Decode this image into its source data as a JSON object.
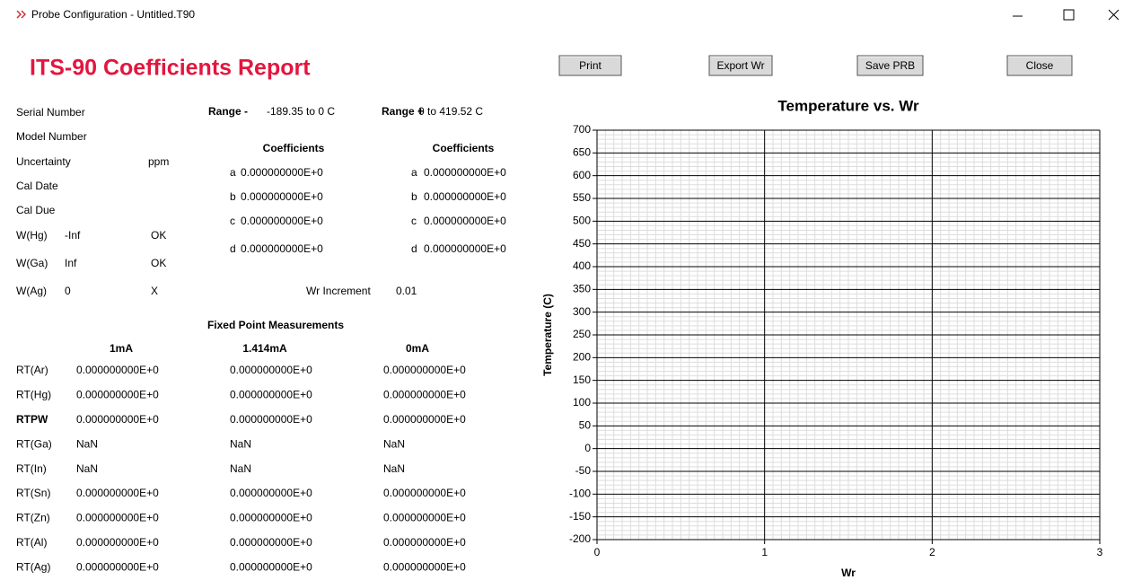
{
  "window": {
    "title": "Probe Configuration - Untitled.T90"
  },
  "report": {
    "title": "ITS-90 Coefficients Report"
  },
  "buttons": [
    "Print",
    "Export Wr",
    "Save PRB",
    "Close"
  ],
  "info": [
    {
      "label": "Serial Number"
    },
    {
      "label": "Model Number"
    },
    {
      "label": "Uncertainty",
      "unit": "ppm"
    },
    {
      "label": "Cal Date"
    },
    {
      "label": "Cal Due"
    },
    {
      "label": "W(Hg)",
      "value": "-Inf",
      "status": "OK"
    },
    {
      "label": "W(Ga)",
      "value": "Inf",
      "status": "OK"
    },
    {
      "label": "W(Ag)",
      "value": 0,
      "status": "X"
    }
  ],
  "ranges": [
    {
      "label": "Range -",
      "value": "-189.35 to 0 C"
    },
    {
      "label": "Range +",
      "value": "0 to 419.52 C"
    }
  ],
  "coefficients": [
    {
      "heading": "Coefficients",
      "rows": [
        [
          "a",
          "0.000000000E+0"
        ],
        [
          "b",
          "0.000000000E+0"
        ],
        [
          "c",
          "0.000000000E+0"
        ],
        [
          "d",
          "0.000000000E+0"
        ]
      ]
    },
    {
      "heading": "Coefficients",
      "rows": [
        [
          "a",
          "0.000000000E+0"
        ],
        [
          "b",
          "0.000000000E+0"
        ],
        [
          "c",
          "0.000000000E+0"
        ],
        [
          "d",
          "0.000000000E+0"
        ]
      ]
    }
  ],
  "wr_increment": {
    "label": "Wr Increment",
    "value": 0.01
  },
  "fixed_points": {
    "title": "Fixed Point Measurements",
    "columns": [
      "1mA",
      "1.414mA",
      "0mA"
    ],
    "rows": [
      {
        "label": "RT(Ar)",
        "values": [
          "0.000000000E+0",
          "0.000000000E+0",
          "0.000000000E+0"
        ]
      },
      {
        "label": "RT(Hg)",
        "values": [
          "0.000000000E+0",
          "0.000000000E+0",
          "0.000000000E+0"
        ]
      },
      {
        "label": "RTPW",
        "values": [
          "0.000000000E+0",
          "0.000000000E+0",
          "0.000000000E+0"
        ]
      },
      {
        "label": "RT(Ga)",
        "values": [
          "NaN",
          "NaN",
          "NaN"
        ]
      },
      {
        "label": "RT(In)",
        "values": [
          "NaN",
          "NaN",
          "NaN"
        ]
      },
      {
        "label": "RT(Sn)",
        "values": [
          "0.000000000E+0",
          "0.000000000E+0",
          "0.000000000E+0"
        ]
      },
      {
        "label": "RT(Zn)",
        "values": [
          "0.000000000E+0",
          "0.000000000E+0",
          "0.000000000E+0"
        ]
      },
      {
        "label": "RT(Al)",
        "values": [
          "0.000000000E+0",
          "0.000000000E+0",
          "0.000000000E+0"
        ]
      },
      {
        "label": "RT(Ag)",
        "values": [
          "0.000000000E+0",
          "0.000000000E+0",
          "0.000000000E+0"
        ]
      }
    ]
  },
  "chart_data": {
    "type": "line",
    "title": "Temperature vs. Wr",
    "x_label": "Wr",
    "y_label": "Temperature (C)",
    "xlim": [
      0,
      3
    ],
    "xticks": [
      0,
      1,
      2,
      3
    ],
    "ylim": [
      -200,
      700
    ],
    "yticks": [
      -200,
      -150,
      -100,
      -50,
      0,
      50,
      100,
      150,
      200,
      250,
      300,
      350,
      400,
      450,
      500,
      550,
      600,
      650,
      700
    ],
    "grid": true,
    "series": []
  }
}
